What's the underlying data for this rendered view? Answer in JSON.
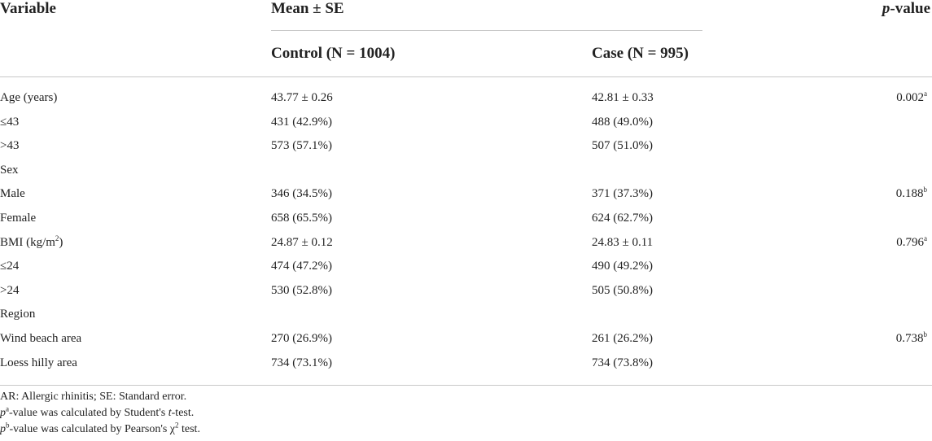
{
  "headers": {
    "variable": "Variable",
    "mean_se": "Mean ± SE",
    "control": "Control (N = 1004)",
    "case": "Case (N = 995)",
    "p_italic": "p",
    "p_rest": "-value"
  },
  "rows": [
    {
      "label": "Age (years)",
      "control": "43.77 ± 0.26",
      "case": "42.81 ± 0.33",
      "p": "0.002",
      "p_sup": "a"
    },
    {
      "label": "≤43",
      "control": "431 (42.9%)",
      "case": "488 (49.0%)",
      "p": "",
      "p_sup": ""
    },
    {
      "label": ">43",
      "control": "573 (57.1%)",
      "case": "507 (51.0%)",
      "p": "",
      "p_sup": ""
    },
    {
      "label": "Sex",
      "control": "",
      "case": "",
      "p": "",
      "p_sup": ""
    },
    {
      "label": "Male",
      "control": "346 (34.5%)",
      "case": "371 (37.3%)",
      "p": "0.188",
      "p_sup": "b"
    },
    {
      "label": "Female",
      "control": "658 (65.5%)",
      "case": "624 (62.7%)",
      "p": "",
      "p_sup": ""
    },
    {
      "label": "BMI (kg/m",
      "label_sup": "2",
      "label_tail": ")",
      "control": "24.87 ± 0.12",
      "case": "24.83 ± 0.11",
      "p": "0.796",
      "p_sup": "a"
    },
    {
      "label": "≤24",
      "control": "474 (47.2%)",
      "case": "490 (49.2%)",
      "p": "",
      "p_sup": ""
    },
    {
      "label": ">24",
      "control": "530 (52.8%)",
      "case": "505 (50.8%)",
      "p": "",
      "p_sup": ""
    },
    {
      "label": "Region",
      "control": "",
      "case": "",
      "p": "",
      "p_sup": ""
    },
    {
      "label": "Wind beach area",
      "control": "270 (26.9%)",
      "case": "261 (26.2%)",
      "p": "0.738",
      "p_sup": "b"
    },
    {
      "label": "Loess hilly area",
      "control": "734 (73.1%)",
      "case": "734 (73.8%)",
      "p": "",
      "p_sup": ""
    }
  ],
  "footnotes": {
    "line1": "AR: Allergic rhinitis; SE: Standard error.",
    "line2": {
      "p": "p",
      "sup": "a",
      "text1": "-value was calculated by Student's ",
      "t": "t",
      "text2": "-test."
    },
    "line3": {
      "p": "p",
      "sup": "b",
      "text": "-value was calculated by Pearson's χ",
      "sup2": "2",
      "text2": " test."
    }
  }
}
